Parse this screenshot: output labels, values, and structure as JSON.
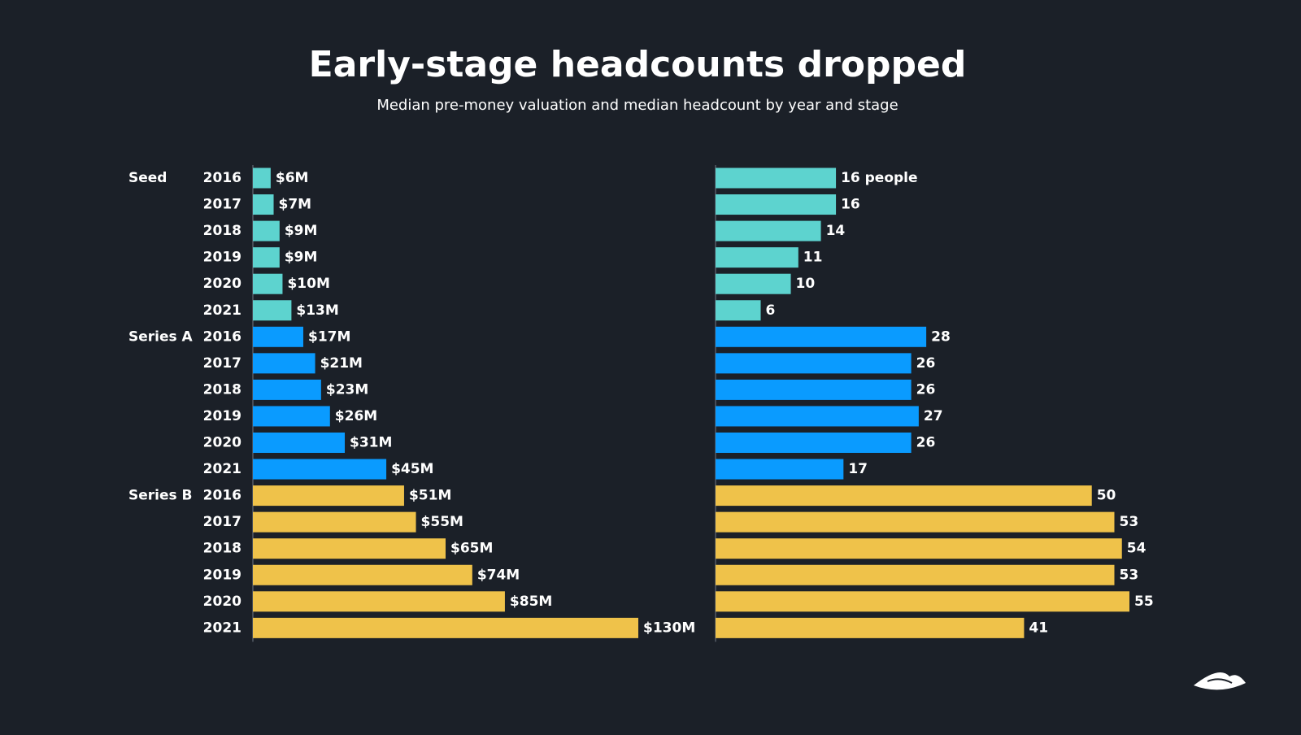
{
  "title": "Early-stage headcounts dropped",
  "subtitle": "Median pre-money valuation and median headcount by year and stage",
  "chart_data": [
    {
      "type": "bar",
      "orientation": "horizontal",
      "categories": [
        "2016",
        "2017",
        "2018",
        "2019",
        "2020",
        "2021"
      ],
      "xlim": [
        0,
        130
      ],
      "series": [
        {
          "name": "Seed",
          "color": "#5dd3cf",
          "values": [
            6,
            7,
            9,
            9,
            10,
            13
          ],
          "value_labels": [
            "$6M",
            "$7M",
            "$9M",
            "$9M",
            "$10M",
            "$13M"
          ]
        },
        {
          "name": "Series A",
          "color": "#0a9bff",
          "values": [
            17,
            21,
            23,
            26,
            31,
            45
          ],
          "value_labels": [
            "$17M",
            "$21M",
            "$23M",
            "$26M",
            "$31M",
            "$45M"
          ]
        },
        {
          "name": "Series B",
          "color": "#efc24a",
          "values": [
            51,
            55,
            65,
            74,
            85,
            130
          ],
          "value_labels": [
            "$51M",
            "$55M",
            "$65M",
            "$74M",
            "$85M",
            "$130M"
          ]
        }
      ]
    },
    {
      "type": "bar",
      "orientation": "horizontal",
      "xlim": [
        0,
        55
      ],
      "series": [
        {
          "color": "#5dd3cf",
          "values": [
            16,
            16,
            14,
            11,
            10,
            6
          ],
          "value_labels": [
            "16 people",
            "16",
            "14",
            "11",
            "10",
            "6"
          ]
        },
        {
          "color": "#0a9bff",
          "values": [
            28,
            26,
            26,
            27,
            26,
            17
          ]
        },
        {
          "color": "#efc24a",
          "values": [
            50,
            53,
            54,
            53,
            55,
            41
          ]
        }
      ]
    }
  ]
}
